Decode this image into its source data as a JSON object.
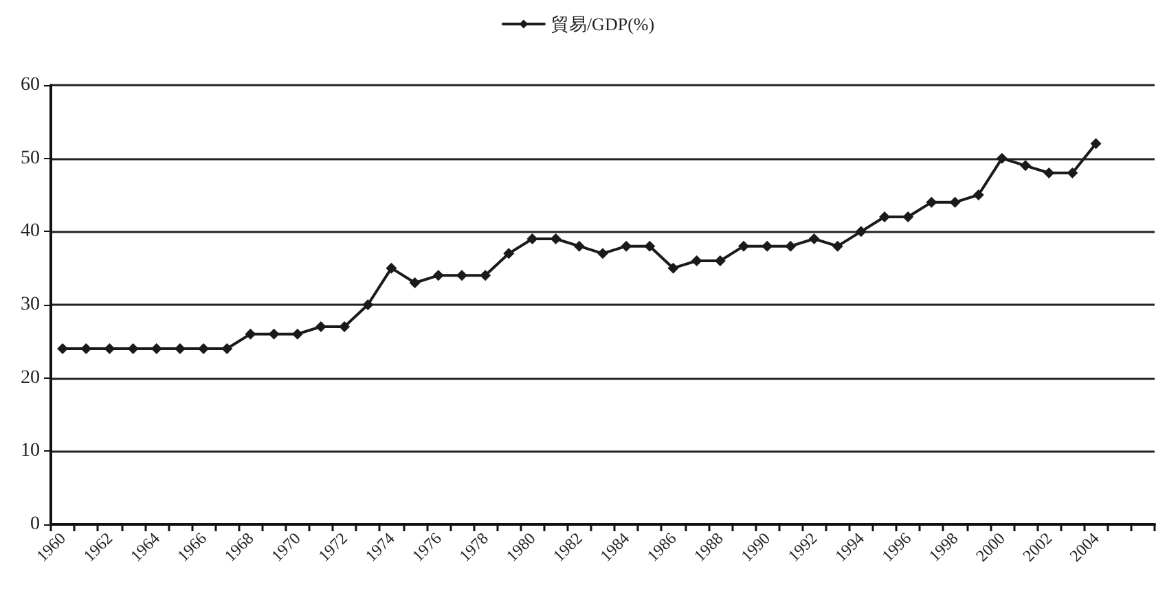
{
  "chart_data": {
    "type": "line",
    "categories": [
      "1960",
      null,
      "1962",
      null,
      "1964",
      null,
      "1966",
      null,
      "1968",
      null,
      "1970",
      null,
      "1972",
      null,
      "1974",
      null,
      "1976",
      null,
      "1978",
      null,
      "1980",
      null,
      "1982",
      null,
      "1984",
      null,
      "1986",
      null,
      "1988",
      null,
      "1990",
      null,
      "1992",
      null,
      "1994",
      null,
      "1996",
      null,
      "1998",
      null,
      "2000",
      null,
      "2002",
      null,
      "2004",
      null,
      null
    ],
    "series": [
      {
        "name": "貿易/GDP(%)",
        "color": "#1a1a1a",
        "values": [
          24,
          24,
          24,
          24,
          24,
          24,
          24,
          24,
          26,
          26,
          26,
          27,
          27,
          30,
          35,
          33,
          34,
          34,
          34,
          37,
          39,
          39,
          38,
          37,
          38,
          38,
          35,
          36,
          36,
          38,
          38,
          38,
          39,
          38,
          40,
          42,
          42,
          44,
          44,
          45,
          50,
          49,
          48,
          48,
          52,
          null,
          null
        ]
      }
    ],
    "ylim": [
      0,
      60
    ],
    "yticks": [
      0,
      10,
      20,
      30,
      40,
      50,
      60
    ],
    "grid": "y",
    "legend": "top",
    "marker": "diamond",
    "line_style": "solid"
  }
}
